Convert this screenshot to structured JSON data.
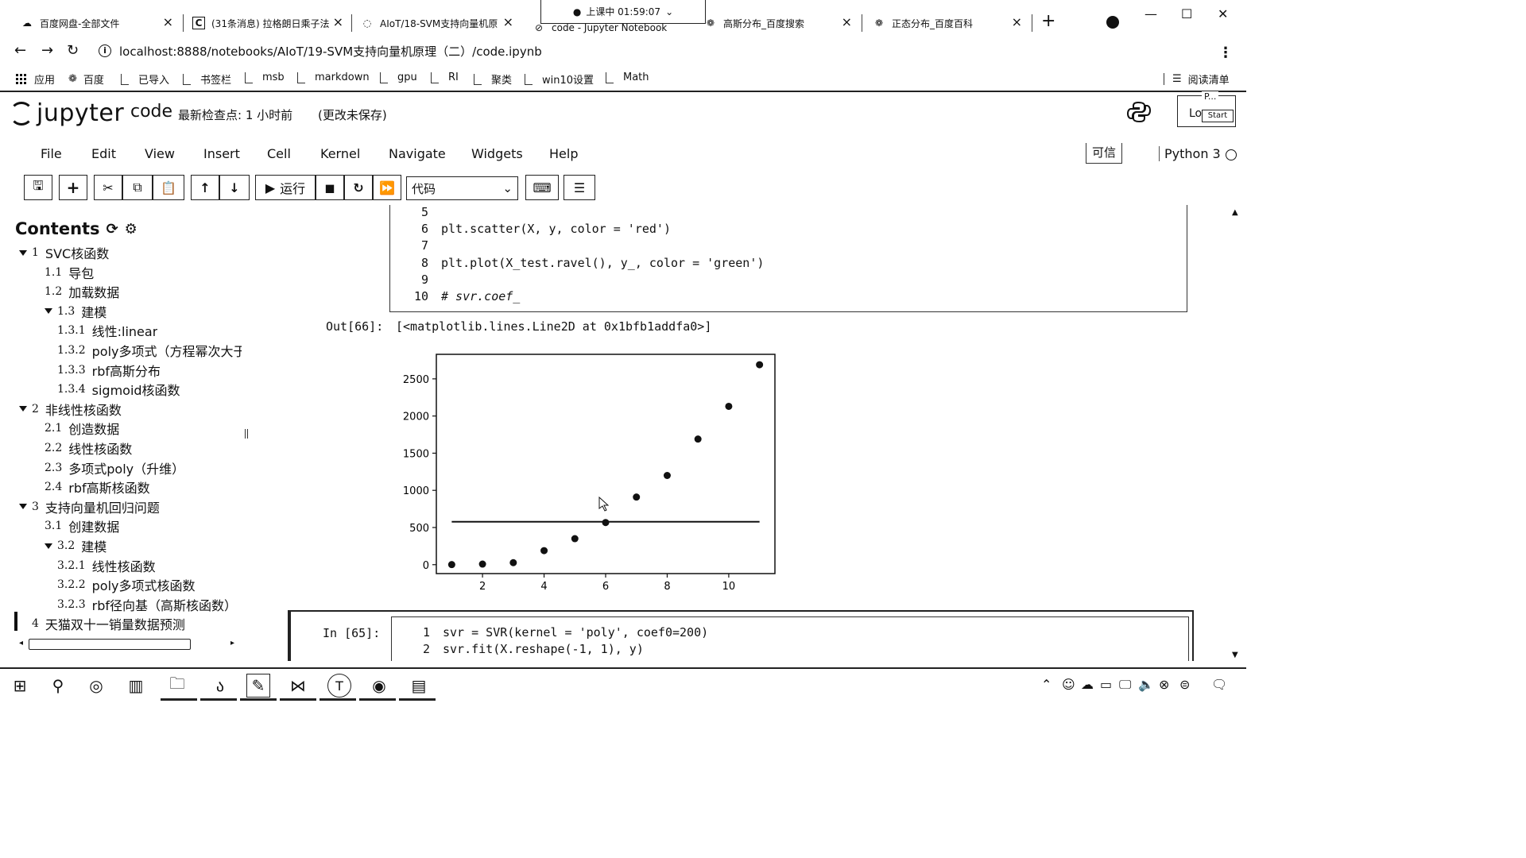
{
  "tabs": [
    {
      "title": "百度网盘-全部文件",
      "icon": "cloud-icon",
      "glyph": "☁"
    },
    {
      "title": "(31条消息) 拉格朗日乘子法",
      "icon": "csdn-icon",
      "glyph": "C"
    },
    {
      "title": "AIoT/18-SVM支持向量机原",
      "icon": "loading-icon",
      "glyph": "◌"
    },
    {
      "title": "code - Jupyter Notebook",
      "icon": "jupyter-tab-icon",
      "glyph": "⊘"
    },
    {
      "title": "高斯分布_百度搜索",
      "icon": "baidu-paw-icon",
      "glyph": "❁"
    },
    {
      "title": "正态分布_百度百科",
      "icon": "baidu-paw-icon",
      "glyph": "❁"
    }
  ],
  "clock": {
    "text": "上课中 01:59:07",
    "dot": "●",
    "caret": "⌄"
  },
  "window_controls": {
    "minimize": "—",
    "maximize": "☐",
    "close": "✕"
  },
  "address": {
    "url": "localhost:8888/notebooks/AIoT/19-SVM支持向量机原理（二）/code.ipynb",
    "info": "i"
  },
  "bookmarks": {
    "apps": "应用",
    "items": [
      "百度",
      "已导入",
      "书签栏",
      "msb",
      "markdown",
      "gpu",
      "RI",
      "聚类",
      "win10设置",
      "Math"
    ],
    "reading_list": "阅读清单"
  },
  "jupyter": {
    "logo": "jupyter",
    "notebook_name": "code",
    "checkpoint": "最新检查点: 1 小时前",
    "unsaved": "(更改未保存)",
    "login_mini": "P...",
    "login_label": "Lo",
    "login_start": "Start",
    "menus": [
      "File",
      "Edit",
      "View",
      "Insert",
      "Cell",
      "Kernel",
      "Navigate",
      "Widgets",
      "Help"
    ],
    "trusted": "可信",
    "kernel": "Python 3",
    "run_label": "运行",
    "cell_type": "代码"
  },
  "toc": {
    "title": "Contents",
    "items": [
      {
        "num": "1",
        "label": "SVC核函数",
        "level": 0,
        "caret": true
      },
      {
        "num": "1.1",
        "label": "导包",
        "level": 1
      },
      {
        "num": "1.2",
        "label": "加载数据",
        "level": 1
      },
      {
        "num": "1.3",
        "label": "建模",
        "level": 1,
        "caret": true
      },
      {
        "num": "1.3.1",
        "label": "线性:linear",
        "level": 2
      },
      {
        "num": "1.3.2",
        "label": "poly多项式（方程幂次大于",
        "level": 2
      },
      {
        "num": "1.3.3",
        "label": "rbf高斯分布",
        "level": 2
      },
      {
        "num": "1.3.4",
        "label": "sigmoid核函数",
        "level": 2
      },
      {
        "num": "2",
        "label": "非线性核函数",
        "level": 0,
        "caret": true
      },
      {
        "num": "2.1",
        "label": "创造数据",
        "level": 1
      },
      {
        "num": "2.2",
        "label": "线性核函数",
        "level": 1
      },
      {
        "num": "2.3",
        "label": "多项式poly（升维）",
        "level": 1
      },
      {
        "num": "2.4",
        "label": "rbf高斯核函数",
        "level": 1
      },
      {
        "num": "3",
        "label": "支持向量机回归问题",
        "level": 0,
        "caret": true
      },
      {
        "num": "3.1",
        "label": "创建数据",
        "level": 1
      },
      {
        "num": "3.2",
        "label": "建模",
        "level": 1,
        "caret": true
      },
      {
        "num": "3.2.1",
        "label": "线性核函数",
        "level": 2
      },
      {
        "num": "3.2.2",
        "label": "poly多项式核函数",
        "level": 2
      },
      {
        "num": "3.2.3",
        "label": "rbf径向基（高斯核函数）",
        "level": 2
      },
      {
        "num": "4",
        "label": "天猫双十一销量数据预测",
        "level": 0
      }
    ]
  },
  "cell_top": {
    "lines": [
      {
        "n": "5",
        "code": ""
      },
      {
        "n": "6",
        "code": "plt.scatter(X, y, color = 'red')"
      },
      {
        "n": "7",
        "code": ""
      },
      {
        "n": "8",
        "code": "plt.plot(X_test.ravel(), y_, color = 'green')"
      },
      {
        "n": "9",
        "code": ""
      },
      {
        "n": "10",
        "code": "# svr.coef_"
      }
    ]
  },
  "output": {
    "prompt": "Out[66]:",
    "text": "[<matplotlib.lines.Line2D at 0x1bfb1addfa0>]"
  },
  "chart_data": {
    "type": "scatter",
    "x": [
      1,
      2,
      3,
      4,
      5,
      6,
      7,
      8,
      9,
      10,
      11
    ],
    "y": [
      1,
      8,
      27,
      189,
      350,
      567,
      910,
      1200,
      1690,
      2130,
      2690
    ],
    "line": {
      "x": [
        1,
        11
      ],
      "y": [
        578,
        578
      ]
    },
    "xticks": [
      2,
      4,
      6,
      8,
      10
    ],
    "yticks": [
      0,
      500,
      1000,
      1500,
      2000,
      2500
    ],
    "xlim": [
      0.5,
      11.5
    ],
    "ylim": [
      -120,
      2830
    ],
    "grid": false,
    "title": "",
    "xlabel": "",
    "ylabel": ""
  },
  "cell_bottom": {
    "prompt": "In  [65]:",
    "lines": [
      {
        "n": "1",
        "code": "svr = SVR(kernel = 'poly', coef0=200)"
      },
      {
        "n": "2",
        "code": "svr.fit(X.reshape(-1, 1), y)"
      }
    ]
  },
  "taskbar": {
    "apps": [
      "start-icon",
      "search-icon",
      "cortana-icon",
      "task-view-icon",
      "file-explorer-icon",
      "app-icon",
      "pycharm-icon",
      "visual-studio-icon",
      "typora-icon",
      "chrome-icon",
      "terminal-icon"
    ]
  }
}
